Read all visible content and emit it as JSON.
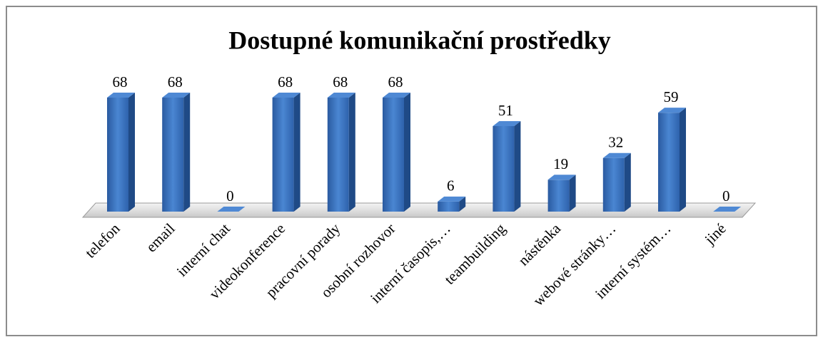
{
  "chart_data": {
    "type": "bar3d",
    "title": "Dostupné komunikační prostředky",
    "categories": [
      "telefon",
      "email",
      "interní chat",
      "videokonference",
      "pracovní porady",
      "osobní rozhovor",
      "interní časopis,…",
      "teambuilding",
      "nástěnka",
      "webové stránky…",
      "interní systém…",
      "jiné"
    ],
    "values": [
      68,
      68,
      0,
      68,
      68,
      68,
      6,
      51,
      19,
      32,
      59,
      0
    ],
    "color": "#3a70bf"
  }
}
